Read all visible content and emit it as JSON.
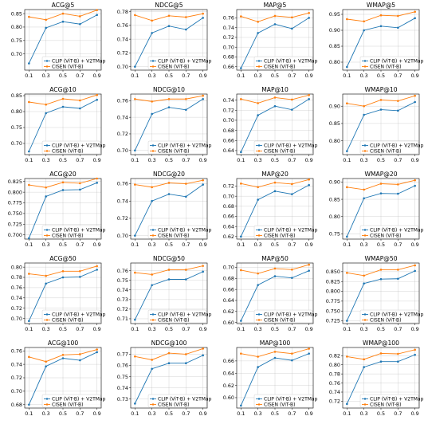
{
  "figure": {
    "x_ticks": [
      "0.1",
      "0.3",
      "0.5",
      "0.7",
      "0.9"
    ],
    "series_names": [
      "CLIP (ViT-B) + V2TMap",
      "CISEN (ViT-B)"
    ],
    "colors": {
      "clip": "#1f77b4",
      "cisen": "#ff7f0e"
    },
    "legend_position": "lower-right",
    "grid": true
  },
  "chart_data": [
    {
      "type": "line",
      "title": "ACG@5",
      "x": [
        0.1,
        0.3,
        0.5,
        0.7,
        0.9
      ],
      "ylim": [
        0.64,
        0.865
      ],
      "yticks": [
        0.7,
        0.75,
        0.8,
        0.85
      ],
      "yticklabels": [
        "0.70",
        "0.75",
        "0.80",
        "0.85"
      ],
      "series": [
        {
          "name": "CLIP (ViT-B) + V2TMap",
          "values": [
            0.665,
            0.797,
            0.82,
            0.811,
            0.845
          ]
        },
        {
          "name": "CISEN (ViT-B)",
          "values": [
            0.838,
            0.827,
            0.85,
            0.84,
            0.863
          ]
        }
      ]
    },
    {
      "type": "line",
      "title": "NDCG@5",
      "x": [
        0.1,
        0.3,
        0.5,
        0.7,
        0.9
      ],
      "ylim": [
        0.695,
        0.783
      ],
      "yticks": [
        0.7,
        0.72,
        0.74,
        0.76,
        0.78
      ],
      "yticklabels": [
        "0.70",
        "0.72",
        "0.74",
        "0.76",
        "0.78"
      ],
      "series": [
        {
          "name": "CLIP (ViT-B) + V2TMap",
          "values": [
            0.7,
            0.749,
            0.759,
            0.754,
            0.771
          ]
        },
        {
          "name": "CISEN (ViT-B)",
          "values": [
            0.775,
            0.767,
            0.774,
            0.772,
            0.777
          ]
        }
      ]
    },
    {
      "type": "line",
      "title": "MAP@5",
      "x": [
        0.1,
        0.3,
        0.5,
        0.7,
        0.9
      ],
      "ylim": [
        0.653,
        0.777
      ],
      "yticks": [
        0.66,
        0.68,
        0.7,
        0.72,
        0.74,
        0.76
      ],
      "yticklabels": [
        "0.66",
        "0.68",
        "0.70",
        "0.72",
        "0.74",
        "0.76"
      ],
      "series": [
        {
          "name": "CLIP (ViT-B) + V2TMap",
          "values": [
            0.657,
            0.729,
            0.747,
            0.738,
            0.76
          ]
        },
        {
          "name": "CISEN (ViT-B)",
          "values": [
            0.763,
            0.752,
            0.764,
            0.761,
            0.77
          ]
        }
      ]
    },
    {
      "type": "line",
      "title": "WMAP@5",
      "x": [
        0.1,
        0.3,
        0.5,
        0.7,
        0.9
      ],
      "ylim": [
        0.775,
        0.965
      ],
      "yticks": [
        0.8,
        0.85,
        0.9,
        0.95
      ],
      "yticklabels": [
        "0.80",
        "0.85",
        "0.90",
        "0.95"
      ],
      "series": [
        {
          "name": "CLIP (ViT-B) + V2TMap",
          "values": [
            0.785,
            0.9,
            0.913,
            0.908,
            0.938
          ]
        },
        {
          "name": "CISEN (ViT-B)",
          "values": [
            0.935,
            0.928,
            0.947,
            0.945,
            0.958
          ]
        }
      ]
    },
    {
      "type": "line",
      "title": "ACG@10",
      "x": [
        0.1,
        0.3,
        0.5,
        0.7,
        0.9
      ],
      "ylim": [
        0.665,
        0.855
      ],
      "yticks": [
        0.7,
        0.75,
        0.8,
        0.85
      ],
      "yticklabels": [
        "0.70",
        "0.75",
        "0.80",
        "0.85"
      ],
      "series": [
        {
          "name": "CLIP (ViT-B) + V2TMap",
          "values": [
            0.675,
            0.795,
            0.815,
            0.81,
            0.837
          ]
        },
        {
          "name": "CISEN (ViT-B)",
          "values": [
            0.83,
            0.822,
            0.84,
            0.835,
            0.852
          ]
        }
      ]
    },
    {
      "type": "line",
      "title": "NDCG@10",
      "x": [
        0.1,
        0.3,
        0.5,
        0.7,
        0.9
      ],
      "ylim": [
        0.695,
        0.768
      ],
      "yticks": [
        0.7,
        0.72,
        0.74,
        0.76
      ],
      "yticklabels": [
        "0.70",
        "0.72",
        "0.74",
        "0.76"
      ],
      "series": [
        {
          "name": "CLIP (ViT-B) + V2TMap",
          "values": [
            0.7,
            0.744,
            0.752,
            0.749,
            0.762
          ]
        },
        {
          "name": "CISEN (ViT-B)",
          "values": [
            0.762,
            0.759,
            0.762,
            0.762,
            0.766
          ]
        }
      ]
    },
    {
      "type": "line",
      "title": "MAP@10",
      "x": [
        0.1,
        0.3,
        0.5,
        0.7,
        0.9
      ],
      "ylim": [
        0.632,
        0.752
      ],
      "yticks": [
        0.64,
        0.66,
        0.68,
        0.7,
        0.72,
        0.74
      ],
      "yticklabels": [
        "0.64",
        "0.66",
        "0.68",
        "0.70",
        "0.72",
        "0.74"
      ],
      "series": [
        {
          "name": "CLIP (ViT-B) + V2TMap",
          "values": [
            0.637,
            0.71,
            0.728,
            0.721,
            0.742
          ]
        },
        {
          "name": "CISEN (ViT-B)",
          "values": [
            0.742,
            0.734,
            0.745,
            0.741,
            0.75
          ]
        }
      ]
    },
    {
      "type": "line",
      "title": "WMAP@10",
      "x": [
        0.1,
        0.3,
        0.5,
        0.7,
        0.9
      ],
      "ylim": [
        0.76,
        0.935
      ],
      "yticks": [
        0.8,
        0.85,
        0.9
      ],
      "yticklabels": [
        "0.80",
        "0.85",
        "0.90"
      ],
      "series": [
        {
          "name": "CLIP (ViT-B) + V2TMap",
          "values": [
            0.77,
            0.875,
            0.89,
            0.887,
            0.912
          ]
        },
        {
          "name": "CISEN (ViT-B)",
          "values": [
            0.908,
            0.9,
            0.918,
            0.915,
            0.93
          ]
        }
      ]
    },
    {
      "type": "line",
      "title": "ACG@20",
      "x": [
        0.1,
        0.3,
        0.5,
        0.7,
        0.9
      ],
      "ylim": [
        0.69,
        0.832
      ],
      "yticks": [
        0.7,
        0.725,
        0.75,
        0.775,
        0.8,
        0.825
      ],
      "yticklabels": [
        "0.700",
        "0.725",
        "0.750",
        "0.775",
        "0.800",
        "0.825"
      ],
      "series": [
        {
          "name": "CLIP (ViT-B) + V2TMap",
          "values": [
            0.692,
            0.79,
            0.805,
            0.806,
            0.822
          ]
        },
        {
          "name": "CISEN (ViT-B)",
          "values": [
            0.817,
            0.811,
            0.823,
            0.821,
            0.832
          ]
        }
      ]
    },
    {
      "type": "line",
      "title": "NDCG@20",
      "x": [
        0.1,
        0.3,
        0.5,
        0.7,
        0.9
      ],
      "ylim": [
        0.696,
        0.766
      ],
      "yticks": [
        0.7,
        0.72,
        0.74,
        0.76
      ],
      "yticklabels": [
        "0.70",
        "0.72",
        "0.74",
        "0.76"
      ],
      "series": [
        {
          "name": "CLIP (ViT-B) + V2TMap",
          "values": [
            0.7,
            0.74,
            0.748,
            0.745,
            0.759
          ]
        },
        {
          "name": "CISEN (ViT-B)",
          "values": [
            0.759,
            0.756,
            0.761,
            0.76,
            0.764
          ]
        }
      ]
    },
    {
      "type": "line",
      "title": "MAP@20",
      "x": [
        0.1,
        0.3,
        0.5,
        0.7,
        0.9
      ],
      "ylim": [
        0.615,
        0.735
      ],
      "yticks": [
        0.62,
        0.64,
        0.66,
        0.68,
        0.7,
        0.72
      ],
      "yticklabels": [
        "0.62",
        "0.64",
        "0.66",
        "0.68",
        "0.70",
        "0.72"
      ],
      "series": [
        {
          "name": "CLIP (ViT-B) + V2TMap",
          "values": [
            0.62,
            0.693,
            0.71,
            0.704,
            0.722
          ]
        },
        {
          "name": "CISEN (ViT-B)",
          "values": [
            0.725,
            0.718,
            0.727,
            0.724,
            0.733
          ]
        }
      ]
    },
    {
      "type": "line",
      "title": "WMAP@20",
      "x": [
        0.1,
        0.3,
        0.5,
        0.7,
        0.9
      ],
      "ylim": [
        0.735,
        0.91
      ],
      "yticks": [
        0.75,
        0.8,
        0.85,
        0.9
      ],
      "yticklabels": [
        "0.75",
        "0.80",
        "0.85",
        "0.90"
      ],
      "series": [
        {
          "name": "CLIP (ViT-B) + V2TMap",
          "values": [
            0.742,
            0.853,
            0.867,
            0.866,
            0.889
          ]
        },
        {
          "name": "CISEN (ViT-B)",
          "values": [
            0.885,
            0.878,
            0.895,
            0.893,
            0.905
          ]
        }
      ]
    },
    {
      "type": "line",
      "title": "ACG@50",
      "x": [
        0.1,
        0.3,
        0.5,
        0.7,
        0.9
      ],
      "ylim": [
        0.69,
        0.808
      ],
      "yticks": [
        0.7,
        0.72,
        0.74,
        0.76,
        0.78,
        0.8
      ],
      "yticklabels": [
        "0.70",
        "0.72",
        "0.74",
        "0.76",
        "0.78",
        "0.80"
      ],
      "series": [
        {
          "name": "CLIP (ViT-B) + V2TMap",
          "values": [
            0.695,
            0.768,
            0.78,
            0.781,
            0.795
          ]
        },
        {
          "name": "CISEN (ViT-B)",
          "values": [
            0.787,
            0.783,
            0.792,
            0.792,
            0.802
          ]
        }
      ]
    },
    {
      "type": "line",
      "title": "NDCG@50",
      "x": [
        0.1,
        0.3,
        0.5,
        0.7,
        0.9
      ],
      "ylim": [
        0.705,
        0.768
      ],
      "yticks": [
        0.71,
        0.72,
        0.73,
        0.74,
        0.75,
        0.76
      ],
      "yticklabels": [
        "0.71",
        "0.72",
        "0.73",
        "0.74",
        "0.75",
        "0.76"
      ],
      "series": [
        {
          "name": "CLIP (ViT-B) + V2TMap",
          "values": [
            0.709,
            0.745,
            0.751,
            0.751,
            0.759
          ]
        },
        {
          "name": "CISEN (ViT-B)",
          "values": [
            0.758,
            0.756,
            0.761,
            0.761,
            0.765
          ]
        }
      ]
    },
    {
      "type": "line",
      "title": "MAP@50",
      "x": [
        0.1,
        0.3,
        0.5,
        0.7,
        0.9
      ],
      "ylim": [
        0.598,
        0.708
      ],
      "yticks": [
        0.6,
        0.62,
        0.64,
        0.66,
        0.68,
        0.7
      ],
      "yticklabels": [
        "0.60",
        "0.62",
        "0.64",
        "0.66",
        "0.68",
        "0.70"
      ],
      "series": [
        {
          "name": "CLIP (ViT-B) + V2TMap",
          "values": [
            0.603,
            0.668,
            0.684,
            0.681,
            0.694
          ]
        },
        {
          "name": "CISEN (ViT-B)",
          "values": [
            0.695,
            0.689,
            0.698,
            0.696,
            0.705
          ]
        }
      ]
    },
    {
      "type": "line",
      "title": "WMAP@50",
      "x": [
        0.1,
        0.3,
        0.5,
        0.7,
        0.9
      ],
      "ylim": [
        0.718,
        0.872
      ],
      "yticks": [
        0.725,
        0.75,
        0.775,
        0.8,
        0.825,
        0.85
      ],
      "yticklabels": [
        "0.725",
        "0.750",
        "0.775",
        "0.800",
        "0.825",
        "0.850"
      ],
      "series": [
        {
          "name": "CLIP (ViT-B) + V2TMap",
          "values": [
            0.725,
            0.82,
            0.831,
            0.832,
            0.852
          ]
        },
        {
          "name": "CISEN (ViT-B)",
          "values": [
            0.847,
            0.84,
            0.855,
            0.855,
            0.866
          ]
        }
      ]
    },
    {
      "type": "line",
      "title": "ACG@100",
      "x": [
        0.1,
        0.3,
        0.5,
        0.7,
        0.9
      ],
      "ylim": [
        0.675,
        0.765
      ],
      "yticks": [
        0.68,
        0.7,
        0.72,
        0.74,
        0.76
      ],
      "yticklabels": [
        "0.68",
        "0.70",
        "0.72",
        "0.74",
        "0.76"
      ],
      "series": [
        {
          "name": "CLIP (ViT-B) + V2TMap",
          "values": [
            0.68,
            0.737,
            0.749,
            0.746,
            0.758
          ]
        },
        {
          "name": "CISEN (ViT-B)",
          "values": [
            0.751,
            0.744,
            0.754,
            0.755,
            0.762
          ]
        }
      ]
    },
    {
      "type": "line",
      "title": "NDCG@100",
      "x": [
        0.1,
        0.3,
        0.5,
        0.7,
        0.9
      ],
      "ylim": [
        0.722,
        0.776
      ],
      "yticks": [
        0.73,
        0.74,
        0.75,
        0.76,
        0.77
      ],
      "yticklabels": [
        "0.73",
        "0.74",
        "0.75",
        "0.76",
        "0.77"
      ],
      "series": [
        {
          "name": "CLIP (ViT-B) + V2TMap",
          "values": [
            0.726,
            0.757,
            0.762,
            0.762,
            0.769
          ]
        },
        {
          "name": "CISEN (ViT-B)",
          "values": [
            0.768,
            0.765,
            0.771,
            0.77,
            0.775
          ]
        }
      ]
    },
    {
      "type": "line",
      "title": "MAP@100",
      "x": [
        0.1,
        0.3,
        0.5,
        0.7,
        0.9
      ],
      "ylim": [
        0.583,
        0.682
      ],
      "yticks": [
        0.6,
        0.62,
        0.64,
        0.66
      ],
      "yticklabels": [
        "0.60",
        "0.62",
        "0.64",
        "0.66"
      ],
      "series": [
        {
          "name": "CLIP (ViT-B) + V2TMap",
          "values": [
            0.587,
            0.65,
            0.665,
            0.661,
            0.672
          ]
        },
        {
          "name": "CISEN (ViT-B)",
          "values": [
            0.672,
            0.667,
            0.675,
            0.672,
            0.68
          ]
        }
      ]
    },
    {
      "type": "line",
      "title": "WMAP@100",
      "x": [
        0.1,
        0.3,
        0.5,
        0.7,
        0.9
      ],
      "ylim": [
        0.705,
        0.838
      ],
      "yticks": [
        0.72,
        0.74,
        0.76,
        0.78,
        0.8,
        0.82
      ],
      "yticklabels": [
        "0.72",
        "0.74",
        "0.76",
        "0.78",
        "0.80",
        "0.82"
      ],
      "series": [
        {
          "name": "CLIP (ViT-B) + V2TMap",
          "values": [
            0.714,
            0.795,
            0.807,
            0.807,
            0.822
          ]
        },
        {
          "name": "CISEN (ViT-B)",
          "values": [
            0.818,
            0.812,
            0.825,
            0.824,
            0.833
          ]
        }
      ]
    }
  ]
}
